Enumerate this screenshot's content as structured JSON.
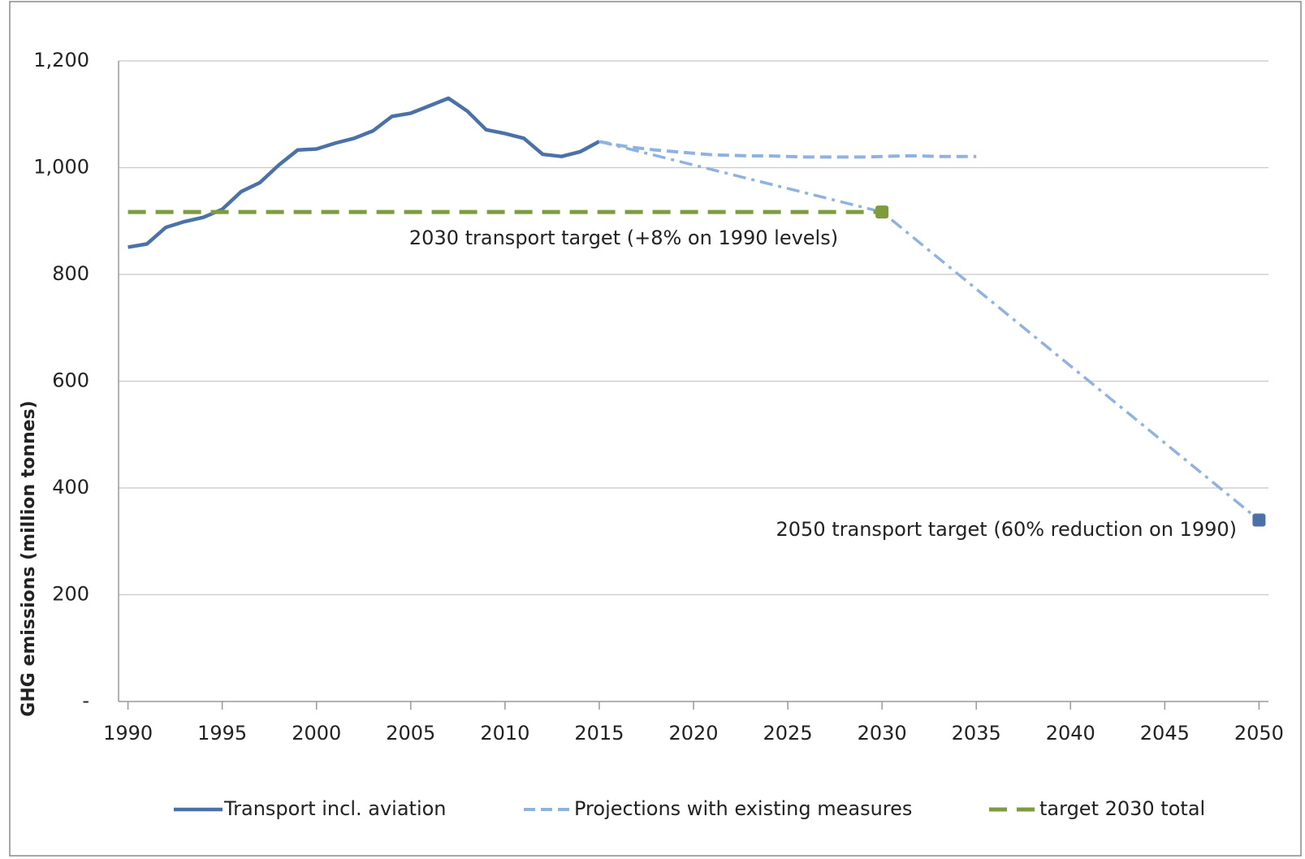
{
  "chart_data": {
    "type": "line",
    "y_label": "GHG emissions (million tonnes)",
    "xlim": [
      1989.5,
      2050.5
    ],
    "xticks": [
      1990,
      1995,
      2000,
      2005,
      2010,
      2015,
      2020,
      2025,
      2030,
      2035,
      2040,
      2045,
      2050
    ],
    "ylim": [
      0,
      1200
    ],
    "yticks": [
      {
        "value": 0,
        "label": "-"
      },
      200,
      400,
      600,
      800,
      {
        "value": 1000,
        "label": "1,000"
      },
      {
        "value": 1200,
        "label": "1,200"
      }
    ],
    "grid": true,
    "legend": "bottom",
    "series": [
      {
        "name": "Transport incl. aviation",
        "color": "#4a72a8",
        "style": "solid",
        "x": [
          1990,
          1991,
          1992,
          1993,
          1994,
          1995,
          1996,
          1997,
          1998,
          1999,
          2000,
          2001,
          2002,
          2003,
          2004,
          2005,
          2006,
          2007,
          2008,
          2009,
          2010,
          2011,
          2012,
          2013,
          2014,
          2015
        ],
        "values": [
          851,
          857,
          888,
          899,
          907,
          922,
          955,
          972,
          1005,
          1033,
          1035,
          1046,
          1055,
          1069,
          1096,
          1102,
          1116,
          1130,
          1106,
          1071,
          1064,
          1055,
          1025,
          1021,
          1030,
          1049
        ]
      },
      {
        "name": "Projections with existing measures",
        "color": "#8fb3e0",
        "style": "dashed",
        "x": [
          2015,
          2016,
          2017,
          2018,
          2019,
          2020,
          2021,
          2022,
          2023,
          2024,
          2025,
          2026,
          2027,
          2028,
          2029,
          2030,
          2031,
          2032,
          2033,
          2034,
          2035
        ],
        "values": [
          1049,
          1042,
          1037,
          1033,
          1030,
          1027,
          1024,
          1023,
          1022,
          1022,
          1021,
          1020,
          1020,
          1020,
          1020,
          1021,
          1022,
          1022,
          1021,
          1021,
          1021
        ]
      },
      {
        "color": "#8fb3e0",
        "style": "dashdot",
        "x": [
          2015,
          2030,
          2050
        ],
        "values": [
          1049,
          917,
          340
        ],
        "marker": "last",
        "marker_color": "#4a72a8"
      },
      {
        "name": "target 2030 total",
        "color": "#7c9c3e",
        "style": "longdash",
        "x": [
          1990,
          2030
        ],
        "values": [
          917,
          917
        ],
        "marker": "last"
      }
    ],
    "annotations": [
      "2030 transport target (+8% on 1990 levels)",
      "2050 transport target (60% reduction on 1990)"
    ]
  }
}
